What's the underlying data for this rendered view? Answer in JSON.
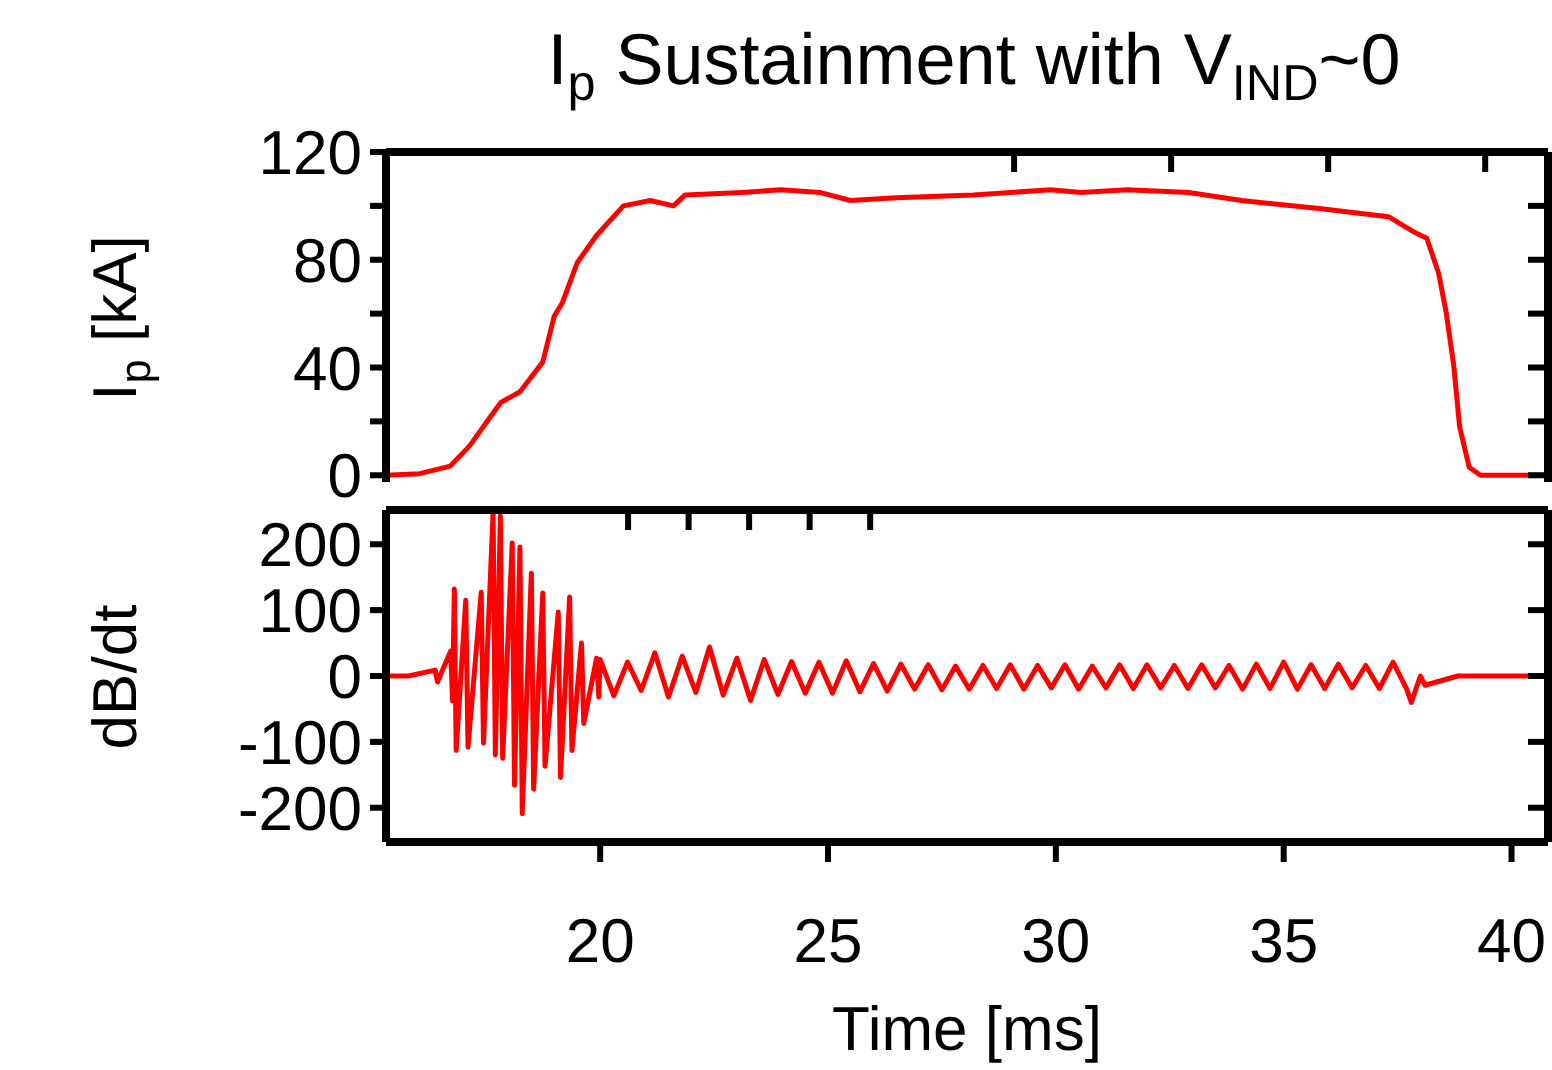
{
  "chart_data": [
    {
      "type": "line",
      "title": "I$_{p}$ Sustainment with V$_{IND}$~0",
      "ylabel": "I$_{p}$ [kA]",
      "color": "#ff0000",
      "tick_labels": "y",
      "xlim": [
        15.3,
        40.8
      ],
      "xticks": [
        20,
        25,
        30,
        35,
        40
      ],
      "ylim": [
        -2.5,
        120
      ],
      "yticks": [
        0,
        {
          "value": 20,
          "label": null
        },
        40,
        {
          "value": 60,
          "label": null
        },
        80,
        {
          "value": 100,
          "label": null
        },
        120
      ],
      "x": [
        15.3,
        16.04,
        16.71,
        17.14,
        17.56,
        17.82,
        18.24,
        18.74,
        18.99,
        19.17,
        19.5,
        19.92,
        20.51,
        21.1,
        21.61,
        21.86,
        23.11,
        23.97,
        24.82,
        25.49,
        26.5,
        28.19,
        29.88,
        30.56,
        31.56,
        32.92,
        34.08,
        35.78,
        37.3,
        37.89,
        38.14,
        38.4,
        38.56,
        38.73,
        38.86,
        39.07,
        39.32,
        40.8
      ],
      "values": [
        0,
        0.6,
        3.4,
        11,
        21,
        27,
        31,
        42,
        59,
        64,
        79,
        89,
        100,
        102,
        100,
        104,
        105,
        106,
        105,
        102,
        103,
        104,
        106,
        105,
        106,
        105,
        102,
        99,
        96,
        90,
        88,
        75,
        61,
        41,
        18,
        3,
        0,
        0
      ]
    },
    {
      "type": "line",
      "ylabel": "dB/dt",
      "xlabel": "Time [ms]",
      "color": "#ff0000",
      "xlim": [
        15.3,
        40.8
      ],
      "xticks": [
        20,
        25,
        30,
        35,
        40
      ],
      "ylim": [
        -252,
        252
      ],
      "yticks": [
        -200,
        -100,
        0,
        100,
        200
      ],
      "x": [
        15.3,
        15.79,
        16.38,
        16.43,
        16.72,
        16.76,
        16.8,
        16.84,
        17.05,
        17.1,
        17.39,
        17.44,
        17.65,
        17.7,
        17.81,
        17.86,
        18.07,
        18.12,
        18.24,
        18.29,
        18.49,
        18.54,
        18.74,
        18.79,
        19.08,
        19.13,
        19.33,
        19.38,
        19.59,
        19.64,
        19.92,
        19.97,
        20.0,
        20.3,
        20.6,
        20.9,
        21.2,
        21.5,
        21.8,
        22.1,
        22.4,
        22.7,
        23.0,
        23.3,
        23.6,
        23.9,
        24.2,
        24.5,
        24.8,
        25.1,
        25.4,
        25.7,
        26.0,
        26.3,
        26.6,
        26.9,
        27.2,
        27.5,
        27.8,
        28.1,
        28.4,
        28.7,
        29.0,
        29.3,
        29.6,
        29.9,
        30.2,
        30.5,
        30.8,
        31.1,
        31.4,
        31.7,
        32.0,
        32.3,
        32.6,
        32.9,
        33.2,
        33.5,
        33.8,
        34.1,
        34.4,
        34.7,
        35.0,
        35.3,
        35.6,
        35.9,
        36.2,
        36.5,
        36.8,
        37.1,
        37.4,
        37.7,
        37.8,
        38.0,
        38.1,
        38.82,
        40.8
      ],
      "values": [
        0,
        0,
        9,
        -9,
        38,
        -38,
        132,
        -113,
        115,
        -108,
        127,
        -102,
        249,
        -120,
        243,
        -125,
        202,
        -166,
        196,
        -209,
        156,
        -172,
        126,
        -137,
        97,
        -154,
        120,
        -113,
        50,
        -72,
        27,
        -32,
        25,
        -30,
        21,
        -22,
        35,
        -32,
        30,
        -25,
        44,
        -29,
        27,
        -37,
        25,
        -28,
        22,
        -26,
        21,
        -26,
        23,
        -24,
        19,
        -23,
        18,
        -20,
        17,
        -21,
        15,
        -20,
        16,
        -19,
        17,
        -20,
        16,
        -18,
        17,
        -20,
        15,
        -18,
        17,
        -19,
        17,
        -18,
        16,
        -19,
        17,
        -18,
        16,
        -20,
        18,
        -19,
        21,
        -20,
        17,
        -19,
        18,
        -18,
        16,
        -19,
        21,
        -20,
        -40,
        0,
        -14,
        0,
        0
      ]
    }
  ]
}
